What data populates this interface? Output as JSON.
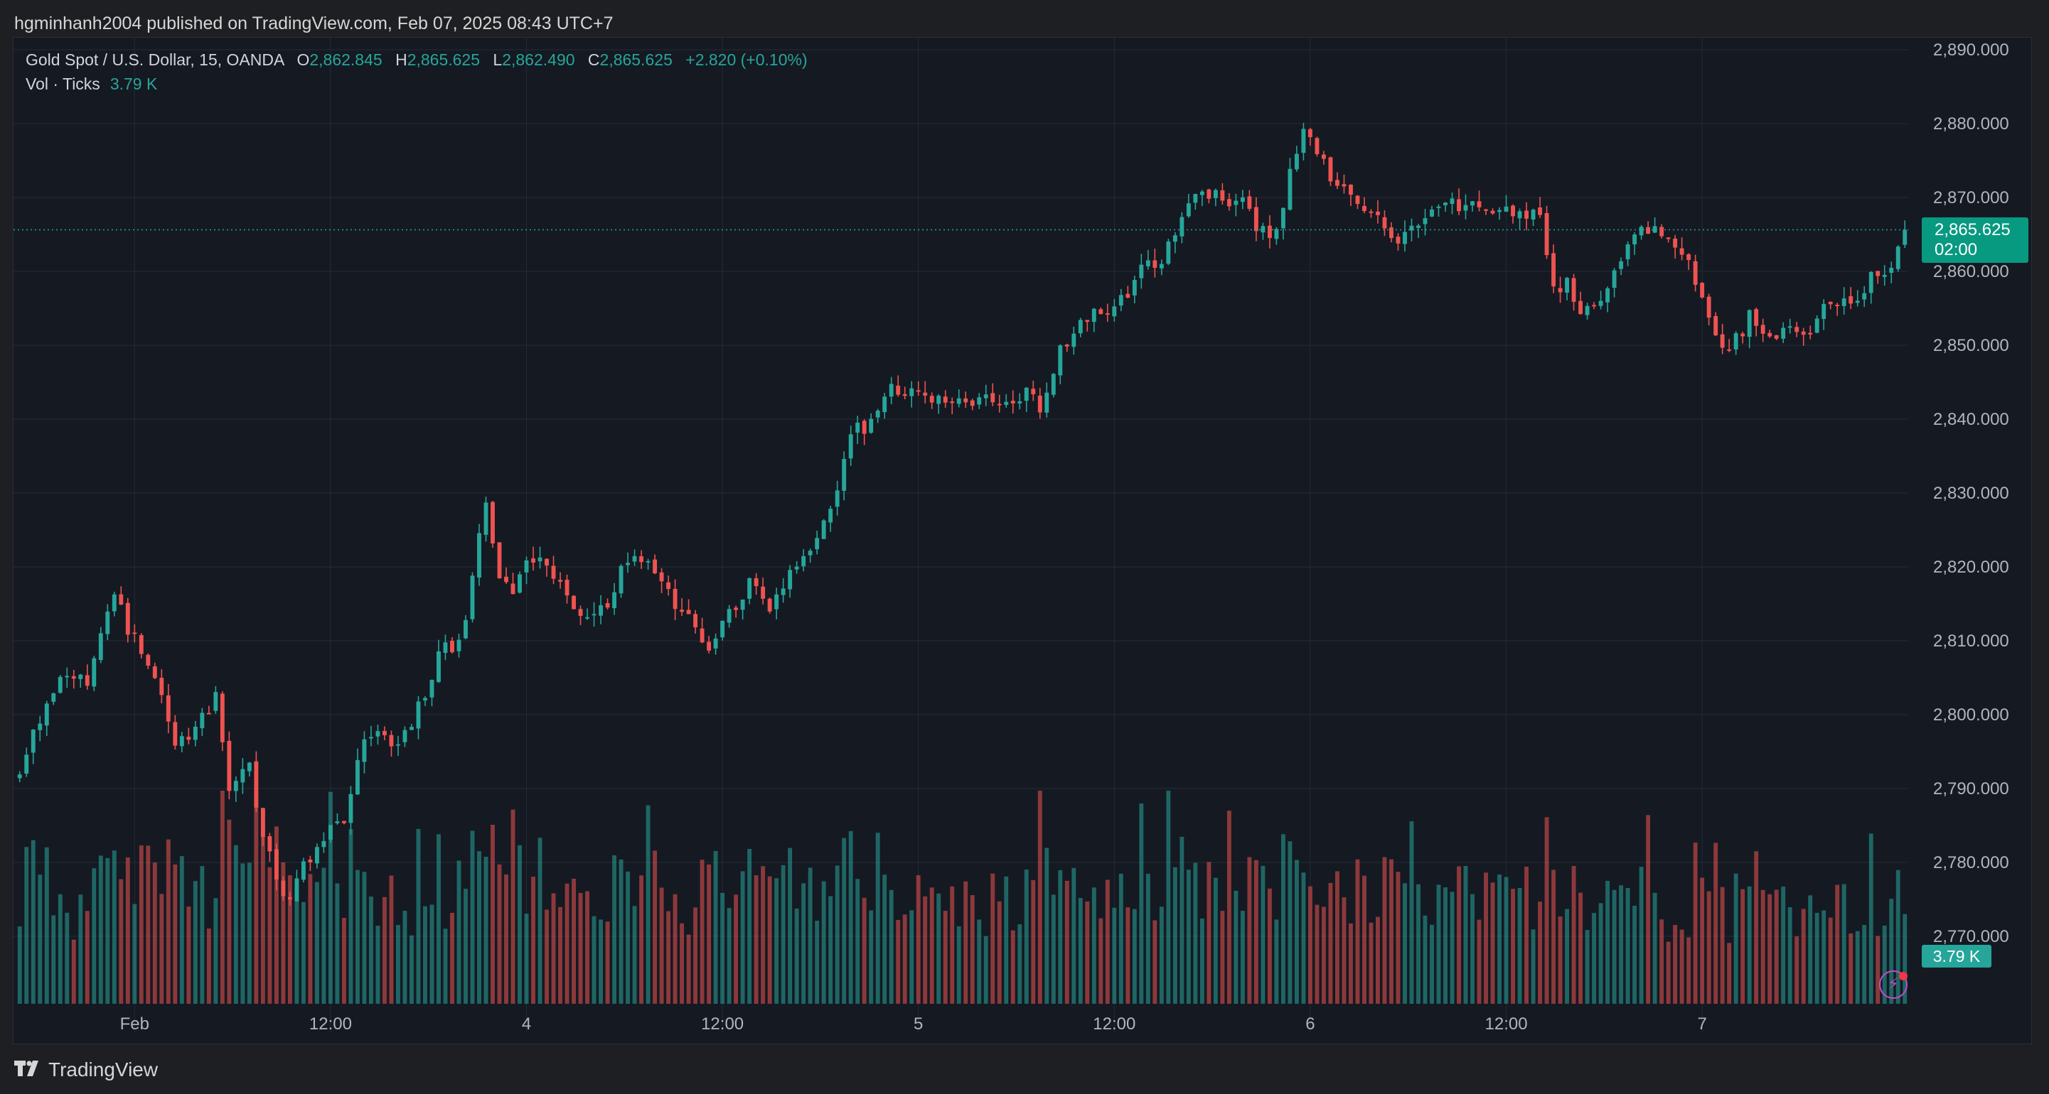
{
  "header": {
    "published_text": "hgminhanh2004 published on TradingView.com, Feb 07, 2025 08:43 UTC+7"
  },
  "legend": {
    "symbol": "Gold Spot / U.S. Dollar, 15, OANDA",
    "open_label": "O",
    "open": "2,862.845",
    "high_label": "H",
    "high": "2,865.625",
    "low_label": "L",
    "low": "2,862.490",
    "close_label": "C",
    "close": "2,865.625",
    "change": "+2.820 (+0.10%)",
    "volume_label": "Vol · Ticks",
    "volume_value": "3.79 K"
  },
  "price_tag": {
    "price": "2,865.625",
    "countdown": "02:00"
  },
  "volume_tag": "3.79 K",
  "footer": {
    "brand": "TradingView"
  },
  "colors": {
    "up": "#26a69a",
    "down": "#ef5350",
    "background": "#151922",
    "grid": "#252a35",
    "last_price_line": "#26a69a"
  },
  "icons": {
    "alert": "lightning-bolt-icon",
    "logo": "tradingview-logo-icon"
  },
  "chart_data": {
    "type": "candlestick",
    "symbol": "Gold Spot / U.S. Dollar",
    "interval": "15",
    "ylim": [
      2763,
      2892
    ],
    "y_ticks": [
      "2,890.000",
      "2,880.000",
      "2,870.000",
      "2,860.000",
      "2,850.000",
      "2,840.000",
      "2,830.000",
      "2,820.000",
      "2,810.000",
      "2,800.000",
      "2,790.000",
      "2,780.000",
      "2,770.000"
    ],
    "y_tick_values": [
      2890,
      2880,
      2870,
      2860,
      2850,
      2840,
      2830,
      2820,
      2810,
      2800,
      2790,
      2780,
      2770
    ],
    "x_ticks": [
      "Feb",
      "12:00",
      "4",
      "12:00",
      "5",
      "12:00",
      "6",
      "12:00",
      "7"
    ],
    "x_tick_index": [
      17,
      46,
      75,
      104,
      133,
      162,
      191,
      220,
      249
    ],
    "last_price": 2865.625,
    "price_path": [
      [
        0,
        2793
      ],
      [
        4,
        2801
      ],
      [
        7,
        2806
      ],
      [
        10,
        2805
      ],
      [
        14,
        2816
      ],
      [
        17,
        2810
      ],
      [
        20,
        2804
      ],
      [
        23,
        2797
      ],
      [
        26,
        2798
      ],
      [
        29,
        2802
      ],
      [
        31,
        2790
      ],
      [
        34,
        2793
      ],
      [
        36,
        2784
      ],
      [
        38,
        2778
      ],
      [
        40,
        2775
      ],
      [
        42,
        2780
      ],
      [
        45,
        2783
      ],
      [
        48,
        2786
      ],
      [
        51,
        2796
      ],
      [
        54,
        2797
      ],
      [
        56,
        2795
      ],
      [
        59,
        2801
      ],
      [
        62,
        2808
      ],
      [
        65,
        2810
      ],
      [
        67,
        2818
      ],
      [
        69,
        2829
      ],
      [
        71,
        2818
      ],
      [
        73,
        2817
      ],
      [
        75,
        2820
      ],
      [
        78,
        2821
      ],
      [
        81,
        2816
      ],
      [
        84,
        2813
      ],
      [
        87,
        2815
      ],
      [
        90,
        2821
      ],
      [
        93,
        2820
      ],
      [
        96,
        2816
      ],
      [
        99,
        2814
      ],
      [
        102,
        2809
      ],
      [
        105,
        2814
      ],
      [
        108,
        2818
      ],
      [
        111,
        2815
      ],
      [
        114,
        2819
      ],
      [
        117,
        2821
      ],
      [
        120,
        2828
      ],
      [
        123,
        2838
      ],
      [
        126,
        2839
      ],
      [
        129,
        2844
      ],
      [
        132,
        2843
      ],
      [
        135,
        2843
      ],
      [
        138,
        2842
      ],
      [
        141,
        2842
      ],
      [
        144,
        2843
      ],
      [
        147,
        2841
      ],
      [
        149,
        2845
      ],
      [
        151,
        2841
      ],
      [
        154,
        2849
      ],
      [
        157,
        2854
      ],
      [
        160,
        2854
      ],
      [
        163,
        2856
      ],
      [
        166,
        2860
      ],
      [
        169,
        2862
      ],
      [
        172,
        2867
      ],
      [
        175,
        2871
      ],
      [
        178,
        2870
      ],
      [
        181,
        2869
      ],
      [
        184,
        2865
      ],
      [
        186,
        2866
      ],
      [
        188,
        2873
      ],
      [
        190,
        2880
      ],
      [
        192,
        2876
      ],
      [
        195,
        2872
      ],
      [
        198,
        2870
      ],
      [
        201,
        2867
      ],
      [
        204,
        2864
      ],
      [
        207,
        2866
      ],
      [
        210,
        2869
      ],
      [
        213,
        2869
      ],
      [
        216,
        2869
      ],
      [
        219,
        2868
      ],
      [
        222,
        2867
      ],
      [
        225,
        2868
      ],
      [
        227,
        2858
      ],
      [
        229,
        2858
      ],
      [
        231,
        2855
      ],
      [
        234,
        2857
      ],
      [
        237,
        2861
      ],
      [
        240,
        2866
      ],
      [
        243,
        2865
      ],
      [
        246,
        2863
      ],
      [
        249,
        2857
      ],
      [
        251,
        2852
      ],
      [
        253,
        2849
      ],
      [
        256,
        2854
      ],
      [
        259,
        2851
      ],
      [
        262,
        2853
      ],
      [
        265,
        2852
      ],
      [
        268,
        2856
      ],
      [
        271,
        2856
      ],
      [
        274,
        2859
      ],
      [
        277,
        2860
      ],
      [
        279,
        2865.6
      ]
    ],
    "volume_ylim": [
      0,
      9000
    ],
    "volume_last": 3790
  }
}
